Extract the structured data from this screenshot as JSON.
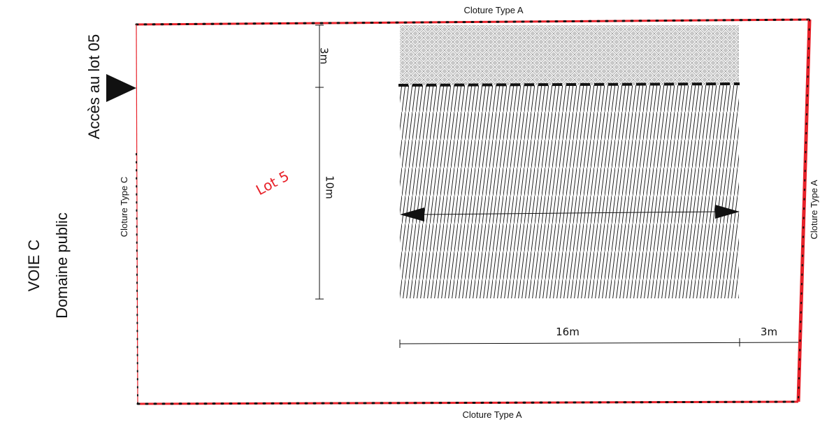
{
  "colors": {
    "fence": "#e8222a",
    "lot_label": "#e8222a",
    "ink": "#111111",
    "grid_fill": "#bcbcbc"
  },
  "labels": {
    "fence_top": "Cloture Type A",
    "fence_bottom": "Cloture Type A",
    "fence_left": "Cloture Type C",
    "fence_right": "Cloture Type A",
    "access": "Accès au lot 05",
    "road_line1": "VOIE C",
    "road_line2": "Domaine public",
    "lot": "Lot 5"
  },
  "dimensions": {
    "setback_top": "3m",
    "building_depth": "10m",
    "building_width": "16m",
    "setback_side": "3m"
  },
  "icons": {
    "access_arrow": "triangle-right-icon",
    "width_arrows": "double-arrow-icon"
  }
}
